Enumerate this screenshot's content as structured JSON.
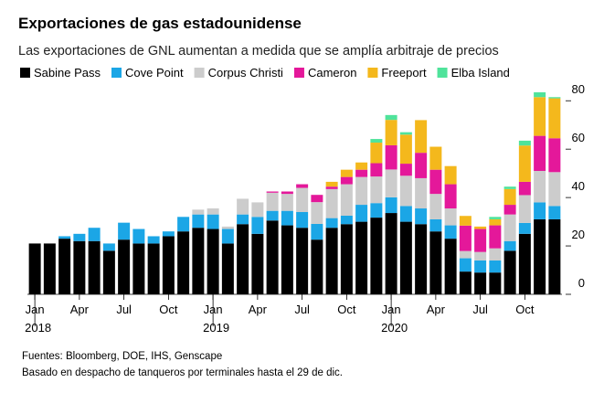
{
  "chart_data": {
    "type": "stacked_bar",
    "title": "Exportaciones de gas estadounidense",
    "subtitle": "Las exportaciones de GNL aumentan a medida que se amplía arbitraje de precios",
    "categories": [
      "Jan",
      null,
      null,
      "Apr",
      null,
      null,
      "Jul",
      null,
      null,
      "Oct",
      null,
      null,
      "Jan",
      null,
      null,
      "Apr",
      null,
      null,
      "Jul",
      null,
      null,
      "Oct",
      null,
      null,
      "Jan",
      null,
      null,
      "Apr",
      null,
      null,
      "Jul",
      null,
      null,
      "Oct",
      null,
      null
    ],
    "years": [
      "2018",
      null,
      null,
      null,
      null,
      null,
      null,
      null,
      null,
      null,
      null,
      null,
      "2019",
      null,
      null,
      null,
      null,
      null,
      null,
      null,
      null,
      null,
      null,
      null,
      "2020",
      null,
      null,
      null,
      null,
      null,
      null,
      null,
      null,
      null,
      null,
      null
    ],
    "series": [
      {
        "name": "Sabine Pass",
        "color": "#000000",
        "values": [
          21,
          21,
          23,
          22,
          22,
          18,
          22.6,
          21,
          21,
          24,
          26,
          27.5,
          27,
          21,
          29,
          25,
          30.5,
          28.5,
          27.5,
          22.6,
          27.5,
          29,
          30,
          31.7,
          33.6,
          30,
          29,
          26,
          23,
          9.4,
          9,
          9,
          18,
          25,
          31,
          31
        ]
      },
      {
        "name": "Cove Point",
        "color": "#1ba6e6",
        "values": [
          0,
          0,
          1,
          3,
          5.5,
          3,
          7,
          6,
          3,
          2,
          6,
          5.5,
          6,
          6,
          4,
          7,
          4,
          6,
          6.5,
          6.5,
          4,
          3.5,
          7,
          6,
          6.5,
          6.5,
          6.5,
          5,
          5.5,
          5.5,
          5,
          5,
          4,
          4.5,
          7,
          5.5
        ]
      },
      {
        "name": "Corpus Christi",
        "color": "#cccccc",
        "values": [
          0,
          0,
          0,
          0,
          0,
          0,
          0,
          0,
          0,
          0,
          0,
          2,
          2.5,
          1,
          6.5,
          6,
          7.5,
          7,
          10,
          9,
          12,
          13,
          11.5,
          11,
          11.5,
          12.5,
          12.5,
          10.5,
          7,
          3,
          3.5,
          5,
          11,
          11.5,
          13,
          14
        ]
      },
      {
        "name": "Cameron",
        "color": "#e4189a",
        "values": [
          0,
          0,
          0,
          0,
          0,
          0,
          0,
          0,
          0,
          0,
          0,
          0,
          0,
          0,
          0,
          0,
          0.5,
          1,
          1.5,
          3,
          1,
          3,
          3,
          5.5,
          10,
          5,
          10.5,
          10,
          10,
          10.5,
          9.5,
          9.5,
          4,
          5.5,
          14.5,
          14
        ]
      },
      {
        "name": "Freeport",
        "color": "#f4b81c",
        "values": [
          0,
          0,
          0,
          0,
          0,
          0,
          0,
          0,
          0,
          0,
          0,
          0,
          0,
          0,
          0,
          0,
          0,
          0,
          0,
          0,
          2,
          3,
          3,
          8.5,
          10.5,
          12,
          13.5,
          9.5,
          7.5,
          4,
          1,
          2.5,
          6.5,
          15,
          16,
          16.5
        ]
      },
      {
        "name": "Elba Island",
        "color": "#4fe39b",
        "values": [
          0,
          0,
          0,
          0,
          0,
          0,
          0,
          0,
          0,
          0,
          0,
          0,
          0,
          0,
          0,
          0,
          0,
          0,
          0,
          0,
          0,
          0,
          0,
          1.5,
          2,
          1,
          0,
          0,
          0,
          0,
          0,
          1,
          1,
          2,
          2,
          0.5
        ]
      }
    ],
    "ylim": [
      0,
      85
    ],
    "yticks": [
      0,
      20,
      40,
      60,
      80
    ],
    "notes": [
      "Fuentes: Bloomberg, DOE, IHS, Genscape",
      "Basado en despacho de tanqueros por terminales hasta el 29 de dic."
    ]
  }
}
